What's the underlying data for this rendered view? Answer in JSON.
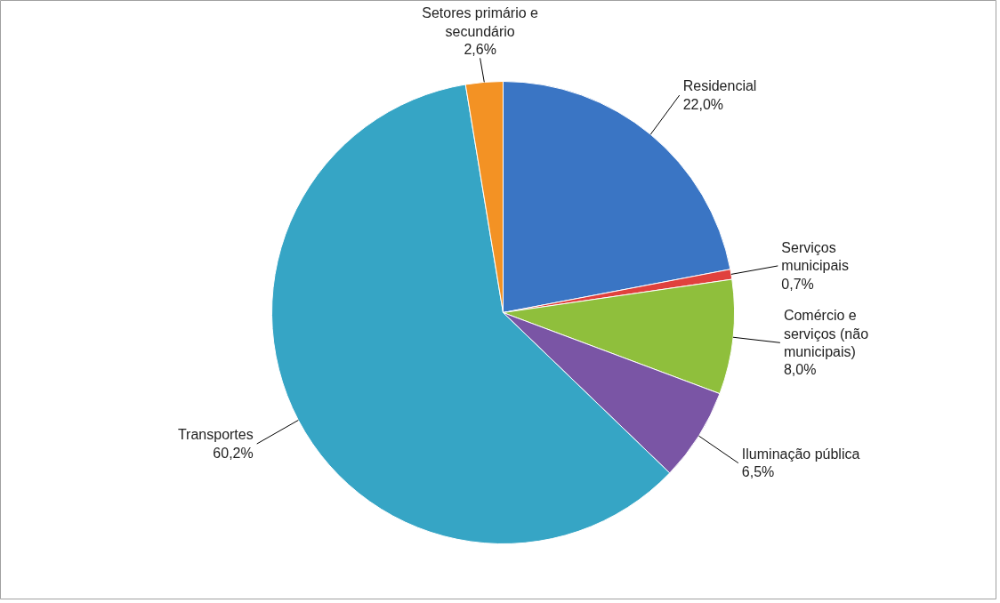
{
  "chart_data": {
    "type": "pie",
    "categories": [
      "Residencial",
      "Serviços municipais",
      "Comércio e serviços (não municipais)",
      "Iluminação pública",
      "Transportes",
      "Setores primário e secundário"
    ],
    "values": [
      22.0,
      0.7,
      8.0,
      6.5,
      60.2,
      2.6
    ],
    "value_labels": [
      "22,0%",
      "0,7%",
      "8,0%",
      "6,5%",
      "60,2%",
      "2,6%"
    ],
    "colors": [
      "#3a75c4",
      "#e0413d",
      "#8fbf3c",
      "#7a55a5",
      "#36a5c5",
      "#f39224"
    ]
  }
}
